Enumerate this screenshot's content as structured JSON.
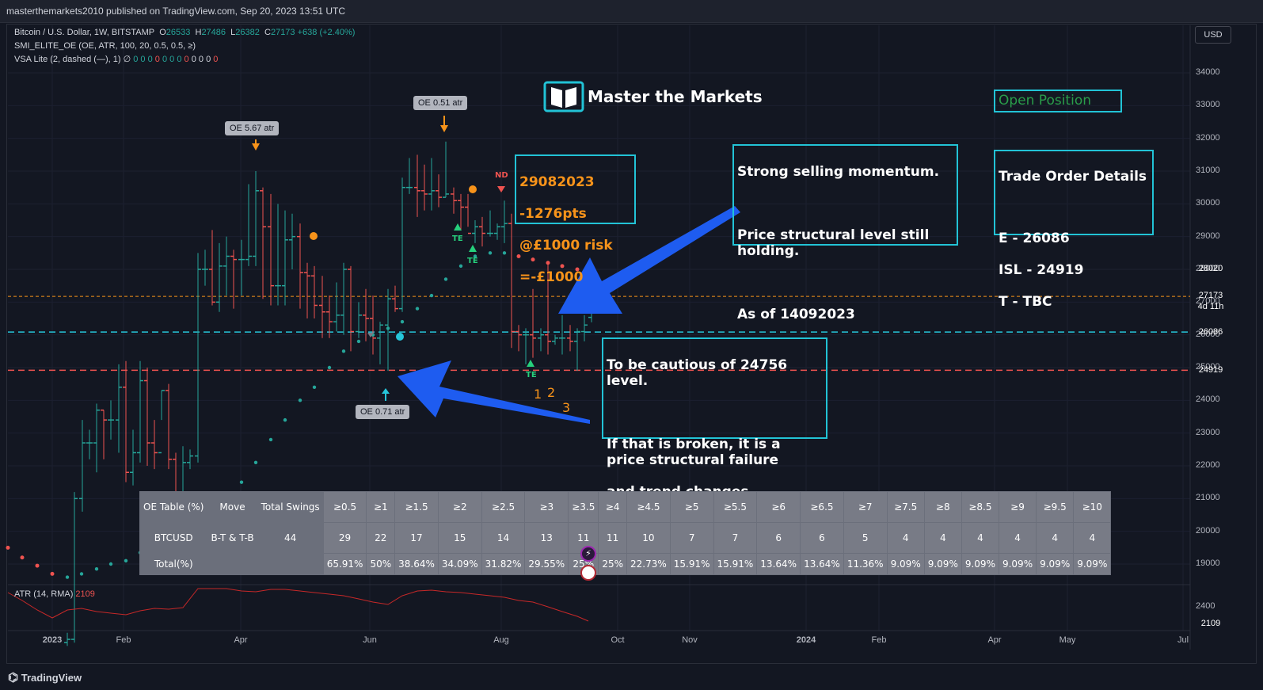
{
  "publisher_line": "masterthemarkets2010 published on TradingView.com, Sep 20, 2023 13:51 UTC",
  "legend": {
    "line1": {
      "name": "Bitcoin / U.S. Dollar, 1W, BITSTAMP",
      "o_label": "O",
      "o": "26533",
      "h_label": "H",
      "h": "27486",
      "l_label": "L",
      "l": "26382",
      "c_label": "C",
      "c": "27173",
      "chg": "+638 (+2.40%)"
    },
    "line2": "SMI_ELITE_OE (OE, ATR, 100, 20, 0.5, 0.5, ≥)",
    "line3_prefix": "VSA Lite (2, dashed (—), 1)  ∅",
    "line3_values": [
      "0",
      "0",
      "0",
      "0",
      "0",
      "0",
      "0",
      "0",
      "0",
      "0",
      "0",
      "0"
    ],
    "line3_colors": [
      "#26a69a",
      "#26a69a",
      "#26a69a",
      "#ef5350",
      "#26a69a",
      "#26a69a",
      "#26a69a",
      "#ef5350",
      "#d1d4dc",
      "#d1d4dc",
      "#d1d4dc",
      "#ef5350"
    ]
  },
  "currency_button": "USD",
  "price_axis": [
    "34000",
    "33000",
    "32000",
    "31000",
    "30000",
    "29000",
    "28000",
    "27000",
    "26000",
    "25000",
    "24000",
    "23000",
    "22000",
    "21000",
    "20000",
    "19000"
  ],
  "price_tags": {
    "red_top": {
      "value": "28020",
      "color": "#f23645"
    },
    "current": {
      "value": "27173",
      "countdown": "4d 11h",
      "color": "#089981"
    },
    "entry": {
      "value": "26086",
      "color": "#089981"
    },
    "stop": {
      "value": "24919",
      "color": "#b22833"
    }
  },
  "atr_axis": {
    "tick": "2400",
    "tag": "2109",
    "tag_color": "#b22833"
  },
  "atr_legend": {
    "label": "ATR (14, RMA)",
    "value": "2109"
  },
  "time_axis": [
    "2023",
    "Feb",
    "Apr",
    "Jun",
    "Aug",
    "Oct",
    "Nov",
    "2024",
    "Feb",
    "Apr",
    "May",
    "Jul"
  ],
  "logo_text": "Master the Markets",
  "open_position": "Open Position",
  "trade_details": {
    "title": "Trade Order Details",
    "lines": [
      "E - 26086",
      "ISL - 24919",
      "T - TBC"
    ]
  },
  "result_box": {
    "lines": [
      "29082023",
      "-1276pts",
      "@£1000 risk",
      "=-£1000"
    ]
  },
  "comment_box_1": {
    "lines": [
      "Strong selling momentum.",
      "",
      "Price structural level still holding.",
      "",
      "As of 14092023"
    ]
  },
  "comment_box_2": {
    "lines": [
      "To be cautious of 24756 level.",
      "",
      "If that is broken, it is a price structural failure",
      "and trend changes."
    ]
  },
  "oe_labels": {
    "a": "OE 5.67 atr",
    "b": "OE 0.51 atr",
    "c": "OE 0.71 atr"
  },
  "markers": {
    "nd": "ND",
    "te": "TE",
    "counts": [
      "1",
      "2",
      "3"
    ]
  },
  "oe_table": {
    "header": [
      "OE Table (%)",
      "Move",
      "Total Swings",
      "≥0.5",
      "≥1",
      "≥1.5",
      "≥2",
      "≥2.5",
      "≥3",
      "≥3.5",
      "≥4",
      "≥4.5",
      "≥5",
      "≥5.5",
      "≥6",
      "≥6.5",
      "≥7",
      "≥7.5",
      "≥8",
      "≥8.5",
      "≥9",
      "≥9.5",
      "≥10"
    ],
    "row_counts": [
      "BTCUSD",
      "B-T & T-B",
      "44",
      "29",
      "22",
      "17",
      "15",
      "14",
      "13",
      "11",
      "11",
      "10",
      "7",
      "7",
      "6",
      "6",
      "5",
      "4",
      "4",
      "4",
      "4",
      "4",
      "4"
    ],
    "row_pct": [
      "Total(%)",
      "",
      "",
      "65.91%",
      "50%",
      "38.64%",
      "34.09%",
      "31.82%",
      "29.55%",
      "25%",
      "25%",
      "22.73%",
      "15.91%",
      "15.91%",
      "13.64%",
      "13.64%",
      "11.36%",
      "9.09%",
      "9.09%",
      "9.09%",
      "9.09%",
      "9.09%",
      "9.09%"
    ]
  },
  "footer_brand": "TradingView",
  "colors": {
    "bull": "#26a69a",
    "bear": "#ef5350",
    "cyan_box": "#22c3d6",
    "orange": "#f7931a",
    "arrow_blue": "#1e5cf0"
  }
}
